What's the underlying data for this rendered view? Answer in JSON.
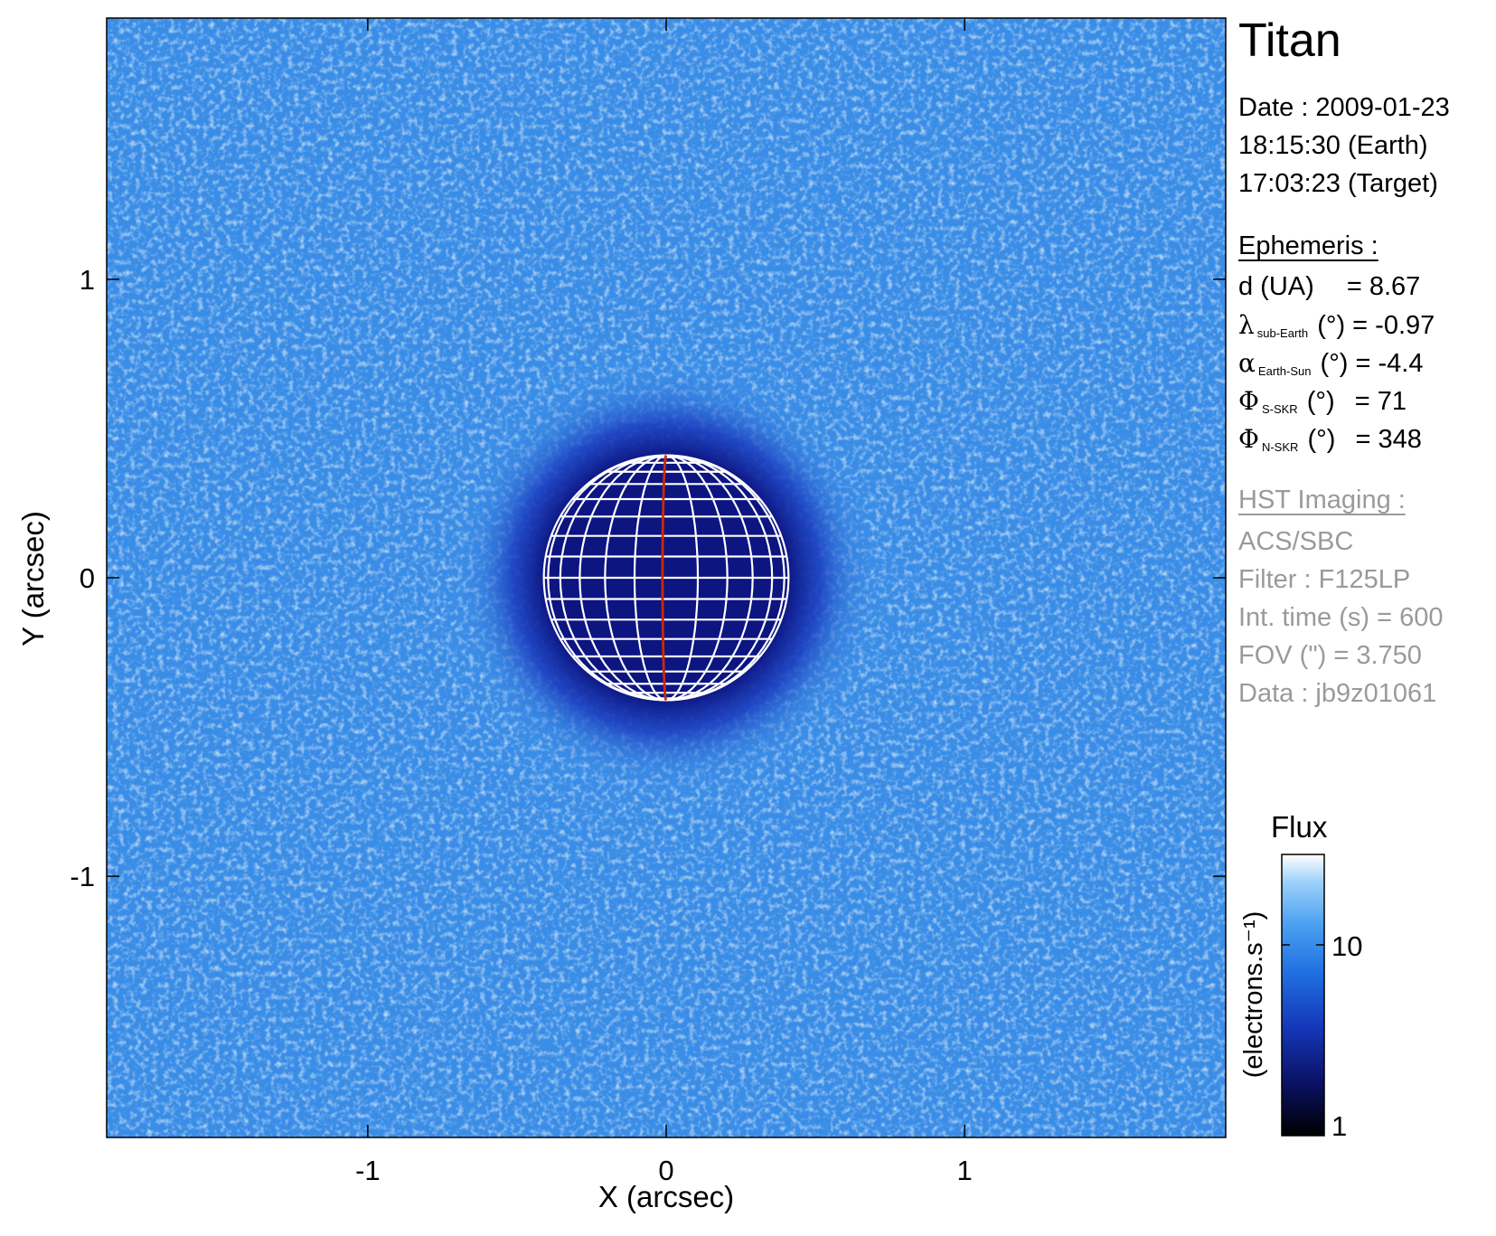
{
  "title": "Titan",
  "date": {
    "line1": "Date : 2009-01-23",
    "line2": "18:15:30 (Earth)",
    "line3": "17:03:23 (Target)"
  },
  "ephemeris": {
    "header": "Ephemeris :",
    "d": {
      "label": "d (UA)",
      "value": "= 8.67"
    },
    "lambda": {
      "symbol": "λ",
      "sub": "sub-Earth",
      "unit": "(°)",
      "value": "= -0.97"
    },
    "alpha": {
      "symbol": "α",
      "sub": "Earth-Sun",
      "unit": "(°)",
      "value": "= -4.4"
    },
    "phi_s": {
      "symbol": "Φ",
      "sub": "S-SKR",
      "unit": "(°)",
      "value": "= 71"
    },
    "phi_n": {
      "symbol": "Φ",
      "sub": "N-SKR",
      "unit": "(°)",
      "value": "= 348"
    }
  },
  "imaging": {
    "header": "HST Imaging :",
    "instrument": "ACS/SBC",
    "filter": "Filter : F125LP",
    "int_time": "Int. time (s) = 600",
    "fov": "FOV (\") = 3.750",
    "data": "Data : jb9z01061"
  },
  "colorbar": {
    "title": "Flux",
    "label": "(electrons.s⁻¹)",
    "ticks": [
      "10",
      "1"
    ],
    "colors": [
      "#000000",
      "#0a1060",
      "#1535b8",
      "#2070e0",
      "#4aa0f0",
      "#9cd0fa",
      "#ffffff"
    ]
  },
  "chart_data": {
    "type": "heatmap",
    "xlabel": "X (arcsec)",
    "ylabel": "Y (arcsec)",
    "xlim": [
      -1.875,
      1.875
    ],
    "ylim": [
      -1.875,
      1.875
    ],
    "xticks": [
      -1,
      0,
      1
    ],
    "yticks": [
      -1,
      0,
      1
    ],
    "xtick_labels": [
      "-1",
      "0",
      "1"
    ],
    "ytick_labels": [
      "1",
      "0",
      "-1"
    ],
    "colorscale": "log",
    "colorscale_range": [
      1,
      30
    ],
    "background_flux_approx": 12,
    "disk_flux_approx": 3,
    "disk_center": [
      0,
      0
    ],
    "disk_radius_arcsec": 0.41,
    "grid_color": "#ffffff",
    "central_meridian_color": "#cc2a00"
  }
}
